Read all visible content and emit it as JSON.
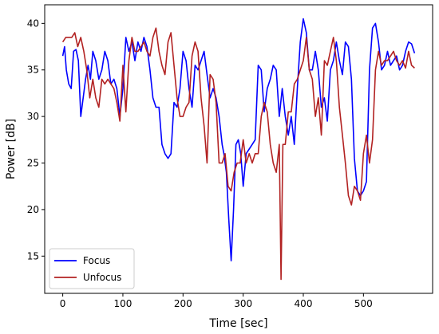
{
  "chart_data": {
    "type": "line",
    "title": "",
    "xlabel": "Time [sec]",
    "ylabel": "Power [dB]",
    "xlim": [
      -30,
      615
    ],
    "ylim": [
      11,
      42
    ],
    "xticks": [
      0,
      100,
      200,
      300,
      400,
      500
    ],
    "xtick_labels": [
      "0",
      "100",
      "200",
      "300",
      "400",
      "500"
    ],
    "yticks": [
      15,
      20,
      25,
      30,
      35,
      40
    ],
    "ytick_labels": [
      "15",
      "20",
      "25",
      "30",
      "35",
      "40"
    ],
    "grid": false,
    "legend_position": "lower-left",
    "series": [
      {
        "name": "Focus",
        "color": "#0000ff",
        "x": [
          0,
          3,
          6,
          10,
          14,
          18,
          22,
          26,
          30,
          34,
          38,
          42,
          46,
          50,
          55,
          60,
          65,
          70,
          75,
          80,
          85,
          90,
          95,
          100,
          105,
          110,
          115,
          120,
          125,
          130,
          135,
          140,
          145,
          150,
          155,
          160,
          165,
          170,
          175,
          180,
          185,
          190,
          195,
          200,
          205,
          210,
          215,
          220,
          225,
          230,
          235,
          240,
          245,
          250,
          255,
          260,
          265,
          268,
          272,
          276,
          280,
          284,
          288,
          292,
          296,
          300,
          305,
          310,
          315,
          320,
          325,
          330,
          335,
          340,
          345,
          350,
          355,
          360,
          365,
          370,
          375,
          380,
          385,
          390,
          395,
          400,
          405,
          410,
          415,
          420,
          425,
          430,
          435,
          440,
          445,
          450,
          455,
          460,
          465,
          470,
          475,
          480,
          485,
          490,
          495,
          500,
          505,
          510,
          515,
          520,
          525,
          530,
          535,
          540,
          545,
          550,
          555,
          560,
          565,
          570,
          575,
          580,
          585
        ],
        "y": [
          36.5,
          37.5,
          35,
          33.5,
          33,
          37,
          37.2,
          36,
          30,
          32,
          34,
          35.5,
          34,
          37,
          36,
          34,
          35,
          37,
          36,
          33.5,
          34,
          33,
          30,
          33,
          38.5,
          37,
          38,
          36,
          38,
          37,
          38.5,
          37.5,
          35,
          32,
          31,
          31,
          27,
          26,
          25.5,
          26,
          31.5,
          31,
          33,
          37,
          36,
          33,
          31,
          35.5,
          35,
          36,
          37,
          34.5,
          32,
          33,
          32,
          30,
          27,
          26,
          24,
          19,
          14.5,
          20,
          27,
          27.5,
          26,
          22.5,
          26,
          26.5,
          27,
          27.5,
          35.5,
          35,
          30.5,
          33,
          34,
          35.5,
          35,
          30,
          33,
          30,
          28,
          30,
          27,
          33,
          38,
          40.5,
          39,
          35,
          35,
          37,
          35,
          31,
          32,
          29.5,
          35,
          36,
          38,
          36,
          34.5,
          38,
          37.5,
          34,
          25.5,
          22,
          21.5,
          22,
          23,
          35,
          39.5,
          40,
          38,
          35,
          35.5,
          37,
          35.5,
          36,
          36.5,
          35,
          35.5,
          37,
          38,
          37.8,
          36.8
        ]
      },
      {
        "name": "Unfocus",
        "color": "#b22222",
        "x": [
          0,
          5,
          10,
          15,
          20,
          25,
          30,
          35,
          40,
          45,
          50,
          55,
          60,
          65,
          70,
          75,
          80,
          85,
          90,
          95,
          100,
          105,
          110,
          115,
          120,
          125,
          130,
          135,
          140,
          145,
          150,
          155,
          160,
          165,
          170,
          175,
          180,
          185,
          190,
          195,
          200,
          205,
          210,
          215,
          220,
          225,
          230,
          235,
          240,
          245,
          250,
          255,
          260,
          265,
          270,
          275,
          280,
          285,
          290,
          295,
          300,
          305,
          310,
          315,
          320,
          325,
          330,
          335,
          340,
          345,
          350,
          355,
          360,
          363,
          366,
          370,
          375,
          380,
          385,
          390,
          395,
          400,
          405,
          410,
          415,
          420,
          425,
          430,
          435,
          440,
          445,
          450,
          455,
          460,
          465,
          470,
          475,
          480,
          485,
          490,
          495,
          500,
          505,
          510,
          515,
          520,
          525,
          530,
          535,
          540,
          545,
          550,
          555,
          560,
          565,
          570,
          575,
          580,
          585
        ],
        "y": [
          38,
          38.5,
          38.5,
          38.5,
          39,
          37.5,
          38.5,
          37,
          35,
          32,
          34,
          32,
          31,
          34,
          33.5,
          34,
          33.5,
          33,
          31.5,
          29.5,
          35.5,
          30.5,
          36,
          38.5,
          37,
          37,
          37.5,
          38,
          37,
          36.5,
          38.5,
          39.5,
          37,
          35.5,
          34.5,
          38,
          39,
          35.5,
          32,
          30,
          30,
          31,
          31.5,
          36.5,
          38,
          37,
          32,
          29,
          25,
          34.5,
          34,
          31.5,
          25,
          25,
          26,
          22.5,
          22,
          24,
          25,
          25,
          27.5,
          25,
          26,
          25,
          26,
          26,
          30,
          31.5,
          30.5,
          27,
          25,
          24,
          27,
          12.5,
          27,
          27,
          30.5,
          30.5,
          33.5,
          34,
          35,
          36,
          38.5,
          35,
          34,
          30,
          32,
          28,
          36,
          35.5,
          37,
          38.5,
          36,
          31,
          28,
          25,
          21.5,
          20.5,
          22.5,
          22,
          21,
          26,
          28,
          25,
          27.5,
          35,
          37,
          35.5,
          36,
          36,
          36.5,
          37,
          36,
          35.5,
          36,
          35.2,
          37,
          35.5,
          35.2
        ]
      }
    ]
  }
}
